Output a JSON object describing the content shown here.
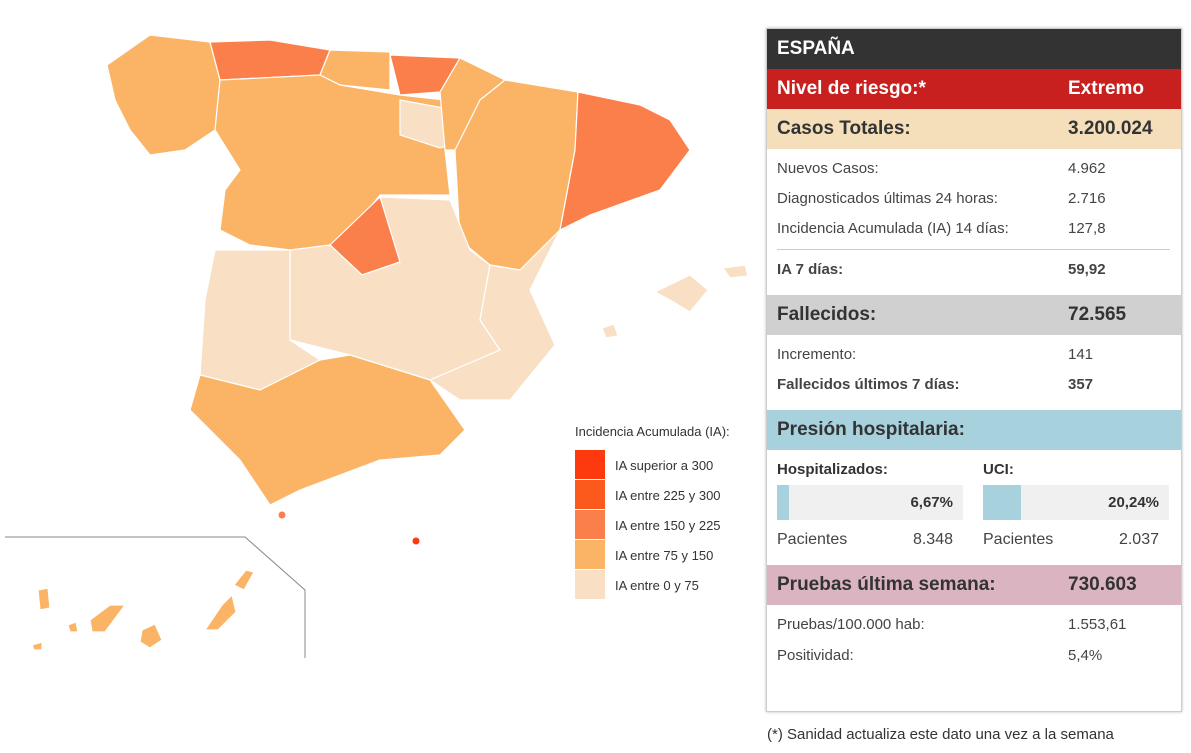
{
  "legend": {
    "title": "Incidencia Acumulada (IA):",
    "items": [
      {
        "label": "IA superior a 300",
        "color": "#fc3a0e"
      },
      {
        "label": "IA entre 225 y 300",
        "color": "#fb5a1c"
      },
      {
        "label": "IA entre 150 y 225",
        "color": "#fb7f4a"
      },
      {
        "label": "IA entre 75 y 150",
        "color": "#fbb366"
      },
      {
        "label": "IA entre 0 y 75",
        "color": "#f9dfc4"
      }
    ]
  },
  "panel": {
    "title": "ESPAÑA",
    "risk": {
      "label": "Nivel de riesgo:*",
      "value": "Extremo"
    },
    "cases": {
      "label": "Casos Totales:",
      "value": "3.200.024",
      "rows": [
        [
          "Nuevos Casos:",
          "4.962"
        ],
        [
          "Diagnosticados últimas 24 horas:",
          "2.716"
        ],
        [
          "Incidencia Acumulada (IA) 14 días:",
          "127,8"
        ]
      ],
      "ia7": [
        "IA 7 días:",
        "59,92"
      ]
    },
    "deaths": {
      "label": "Fallecidos:",
      "value": "72.565",
      "rows": [
        [
          "Incremento:",
          "141"
        ],
        [
          "Fallecidos últimos 7 días:",
          "357"
        ]
      ]
    },
    "hospital": {
      "title": "Presión hospitalaria:",
      "units": [
        {
          "label": "Hospitalizados:",
          "percent": 6.67,
          "percent_label": "6,67%",
          "patients_label": "Pacientes",
          "patients": "8.348"
        },
        {
          "label": "UCI:",
          "percent": 20.24,
          "percent_label": "20,24%",
          "patients_label": "Pacientes",
          "patients": "2.037"
        }
      ]
    },
    "tests": {
      "label": "Pruebas última semana:",
      "value": "730.603",
      "rows": [
        [
          "Pruebas/100.000 hab:",
          "1.553,61"
        ],
        [
          "Positividad:",
          "5,4%"
        ]
      ]
    },
    "footnote": "(*) Sanidad actualiza este dato una vez a la semana"
  }
}
